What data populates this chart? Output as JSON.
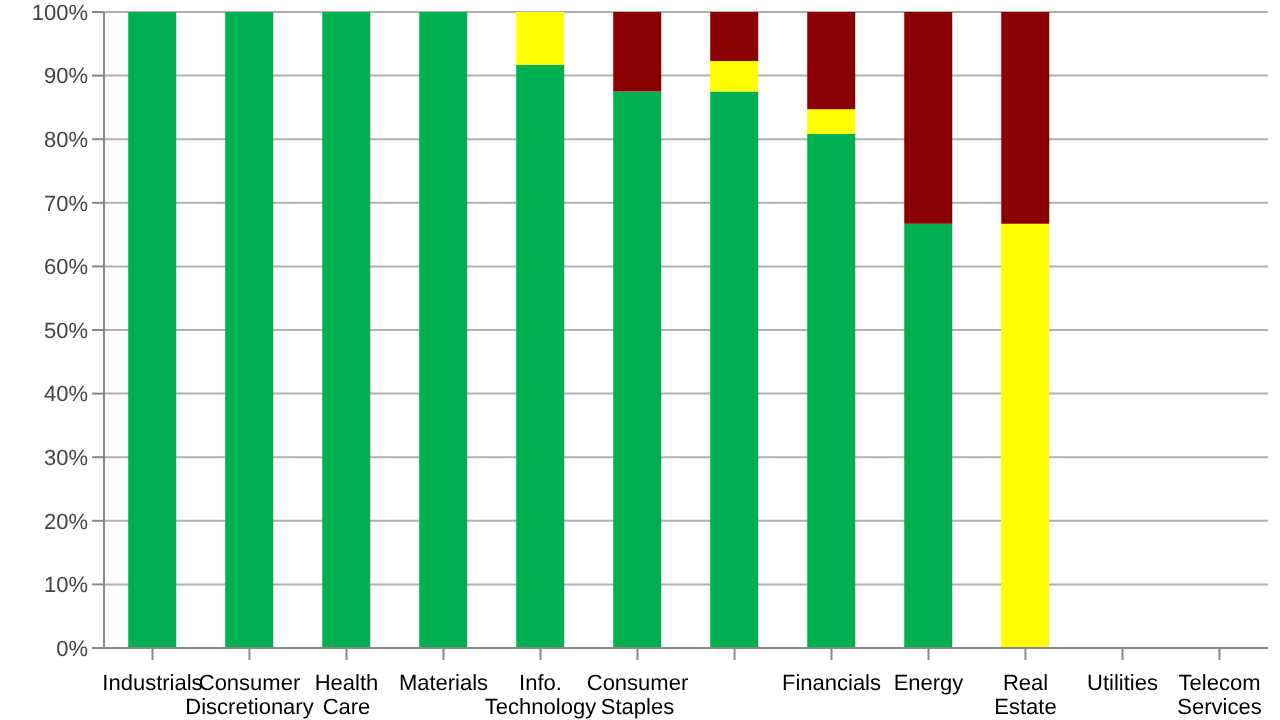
{
  "chart_data": {
    "type": "bar",
    "stacked": true,
    "categories": [
      "Industrials",
      "Consumer Discretionary",
      "Health Care",
      "Materials",
      "Info. Technology",
      "Consumer Staples",
      null,
      "Financials",
      "Energy",
      "Real Estate",
      "Utilities",
      "Telecom Services"
    ],
    "series": [
      {
        "color": "#00b050",
        "values": [
          100,
          100,
          100,
          100,
          91.7,
          87.5,
          87.5,
          80.8,
          66.7,
          0,
          null,
          null
        ]
      },
      {
        "color": "#ffff00",
        "values": [
          0,
          0,
          0,
          0,
          8.3,
          0,
          4.8,
          3.9,
          0,
          66.7,
          null,
          null
        ]
      },
      {
        "color": "#8b0000",
        "values": [
          0,
          0,
          0,
          0,
          0,
          12.5,
          7.7,
          15.3,
          33.3,
          33.3,
          null,
          null
        ]
      }
    ],
    "ylim": [
      0,
      100
    ],
    "yticks": [
      {
        "value": 0,
        "label": "0%"
      },
      {
        "value": 10,
        "label": "10%"
      },
      {
        "value": 20,
        "label": "20%"
      },
      {
        "value": 30,
        "label": "30%"
      },
      {
        "value": 40,
        "label": "40%"
      },
      {
        "value": 50,
        "label": "50%"
      },
      {
        "value": 60,
        "label": "60%"
      },
      {
        "value": 70,
        "label": "70%"
      },
      {
        "value": 80,
        "label": "80%"
      },
      {
        "value": 90,
        "label": "90%"
      },
      {
        "value": 100,
        "label": "100%"
      }
    ],
    "grid": "y"
  }
}
